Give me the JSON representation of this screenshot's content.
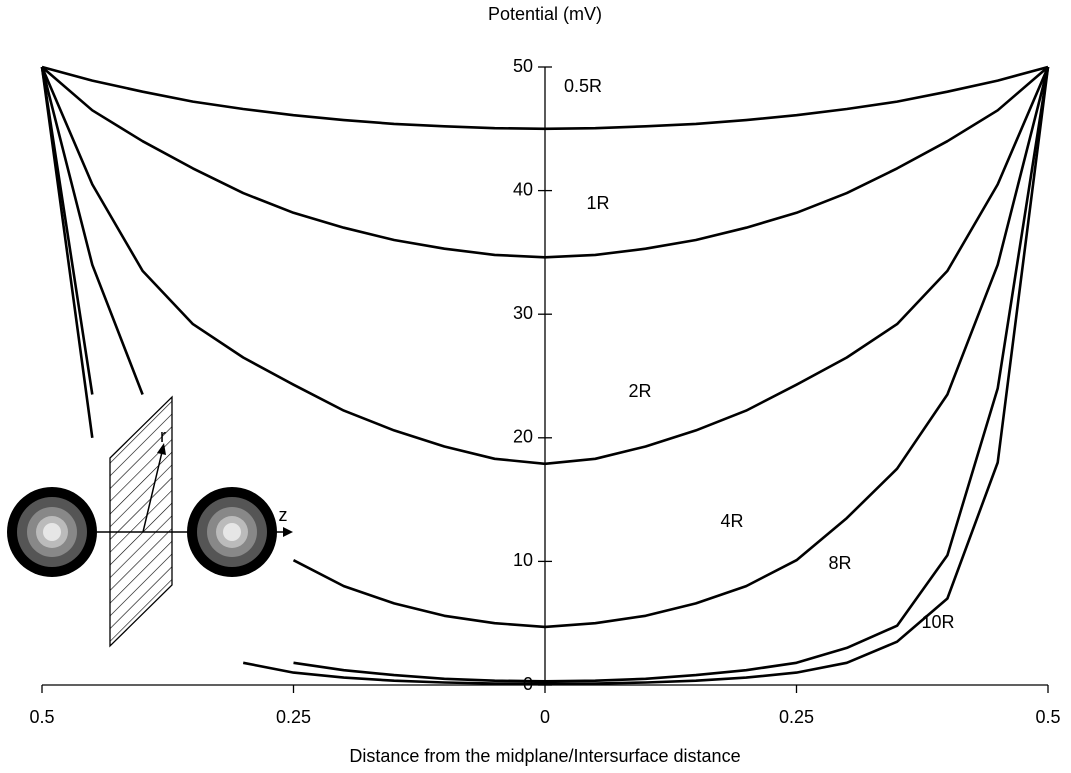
{
  "chart_data": {
    "type": "line",
    "title": "Potential (mV)",
    "x_label": "Distance from the midplane/Intersurface distance",
    "x": [
      -0.5,
      -0.45,
      -0.4,
      -0.35,
      -0.3,
      -0.25,
      -0.2,
      -0.15,
      -0.1,
      -0.05,
      0,
      0.05,
      0.1,
      0.15,
      0.2,
      0.25,
      0.3,
      0.35,
      0.4,
      0.45,
      0.5
    ],
    "series": [
      {
        "name": "0.5R",
        "color": "#000000",
        "values": [
          50,
          48.9,
          48.0,
          47.2,
          46.6,
          46.1,
          45.7,
          45.4,
          45.2,
          45.05,
          45.0,
          45.05,
          45.2,
          45.4,
          45.7,
          46.1,
          46.6,
          47.2,
          48.0,
          48.9,
          50
        ]
      },
      {
        "name": "1R",
        "color": "#000000",
        "values": [
          50,
          46.5,
          44,
          41.8,
          39.8,
          38.2,
          37.0,
          36.0,
          35.3,
          34.8,
          34.6,
          34.8,
          35.3,
          36.0,
          37.0,
          38.2,
          39.8,
          41.8,
          44,
          46.5,
          50
        ]
      },
      {
        "name": "2R",
        "color": "#000000",
        "values": [
          50,
          40.5,
          33.5,
          29.2,
          26.5,
          24.3,
          22.2,
          20.6,
          19.3,
          18.3,
          17.9,
          18.3,
          19.3,
          20.6,
          22.2,
          24.3,
          26.5,
          29.2,
          33.5,
          40.5,
          50
        ]
      },
      {
        "name": "4R",
        "color": "#000000",
        "values": [
          50,
          34,
          23.5,
          null,
          null,
          10.1,
          8.0,
          6.6,
          5.6,
          5.0,
          4.7,
          5.0,
          5.6,
          6.6,
          8.0,
          10.1,
          13.5,
          17.5,
          23.5,
          34,
          50
        ]
      },
      {
        "name": "8R",
        "color": "#000000",
        "values": [
          50,
          23.5,
          null,
          null,
          null,
          1.8,
          1.2,
          0.8,
          0.5,
          0.35,
          0.3,
          0.35,
          0.5,
          0.8,
          1.2,
          1.8,
          3.0,
          4.8,
          10.5,
          24,
          50
        ]
      },
      {
        "name": "10R",
        "color": "#000000",
        "values": [
          50,
          20,
          null,
          null,
          1.8,
          1.0,
          0.6,
          0.35,
          0.2,
          0.12,
          0.1,
          0.12,
          0.2,
          0.35,
          0.6,
          1.0,
          1.8,
          3.5,
          7.0,
          18,
          50
        ]
      }
    ],
    "xlim": [
      -0.5,
      0.5
    ],
    "xticks": [
      {
        "value": -0.5,
        "label": "0.5"
      },
      {
        "value": -0.25,
        "label": "0.25"
      },
      0,
      0.25,
      0.5
    ],
    "ylim": [
      0,
      50
    ],
    "yticks": [
      0,
      10,
      20,
      30,
      40,
      50
    ],
    "grid": false,
    "inset_labels": [
      "z",
      "r"
    ]
  }
}
